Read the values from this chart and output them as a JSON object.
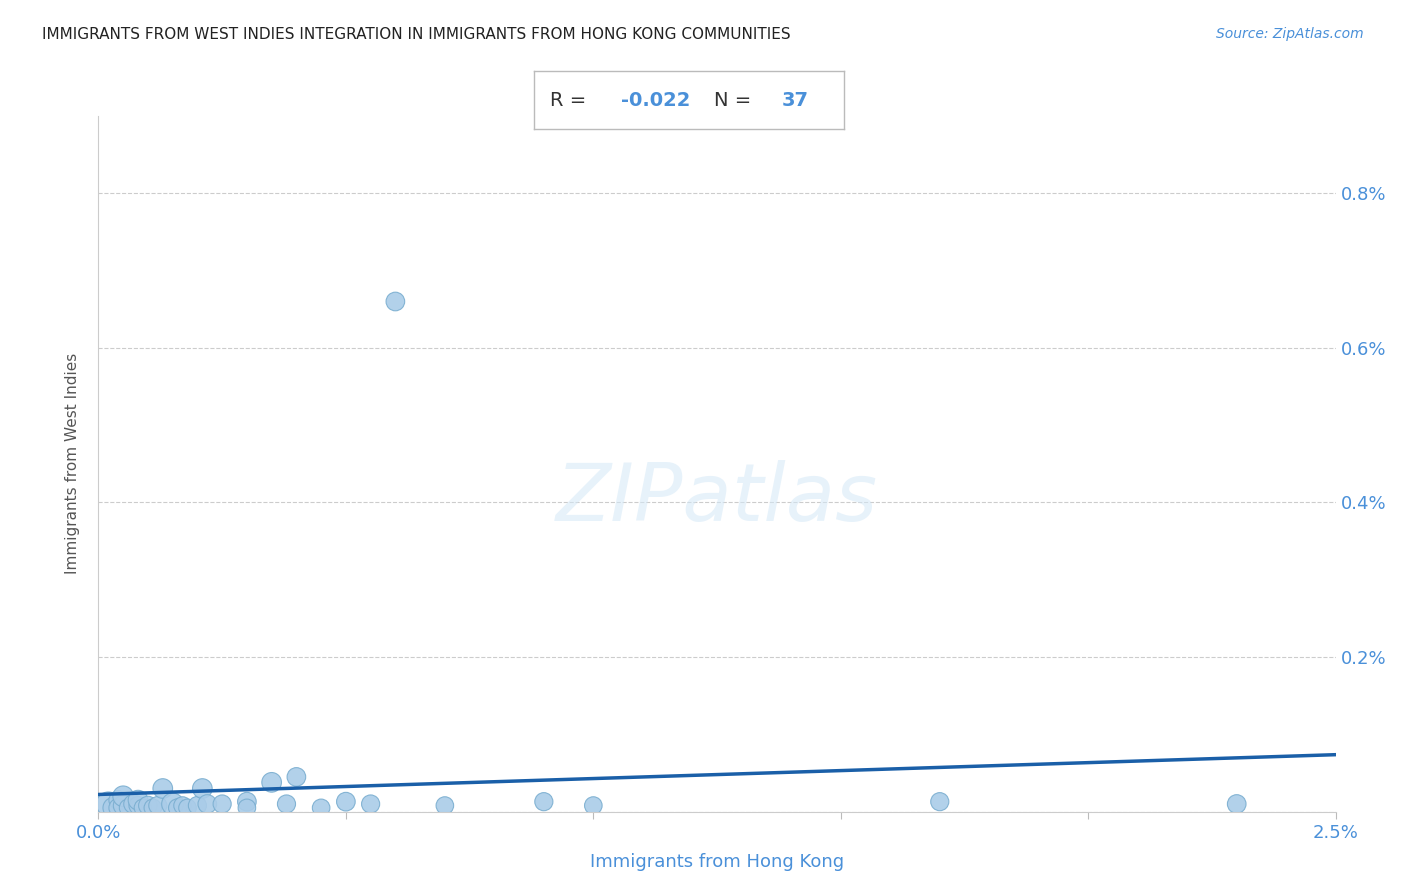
{
  "title": "IMMIGRANTS FROM WEST INDIES INTEGRATION IN IMMIGRANTS FROM HONG KONG COMMUNITIES",
  "source": "Source: ZipAtlas.com",
  "xlabel": "Immigrants from Hong Kong",
  "ylabel": "Immigrants from West Indies",
  "xlim": [
    0.0,
    0.025
  ],
  "ylim": [
    -0.0002,
    0.009
  ],
  "xticks": [
    0.0,
    0.005,
    0.01,
    0.015,
    0.02,
    0.025
  ],
  "xtick_labels": [
    "0.0%",
    "",
    "",
    "",
    "",
    "2.5%"
  ],
  "yticks": [
    0.0,
    0.002,
    0.004,
    0.006,
    0.008
  ],
  "ytick_labels": [
    "",
    "0.2%",
    "0.4%",
    "0.6%",
    "0.8%"
  ],
  "R": -0.022,
  "N": 37,
  "regression_color": "#1a5fa8",
  "scatter_color": "#aacce8",
  "scatter_edge_color": "#7aaed0",
  "title_color": "#222222",
  "axis_color": "#4a90d9",
  "annotation_text_color": "#333333",
  "annotation_value_color": "#4a90d9",
  "watermark": "ZIPatlas",
  "scatter_points": [
    [
      0.0002,
      0.0001
    ],
    [
      0.0003,
      5e-05
    ],
    [
      0.0004,
      0.00015
    ],
    [
      0.0004,
      5e-05
    ],
    [
      0.0005,
      8e-05
    ],
    [
      0.0005,
      0.0002
    ],
    [
      0.0006,
      5e-05
    ],
    [
      0.0007,
      0.0001
    ],
    [
      0.0008,
      8e-05
    ],
    [
      0.0008,
      0.00015
    ],
    [
      0.0009,
      5e-05
    ],
    [
      0.001,
      8e-05
    ],
    [
      0.0011,
      5e-05
    ],
    [
      0.0012,
      8e-05
    ],
    [
      0.0013,
      0.0003
    ],
    [
      0.0015,
      0.0001
    ],
    [
      0.0016,
      5e-05
    ],
    [
      0.0017,
      8e-05
    ],
    [
      0.0018,
      5e-05
    ],
    [
      0.002,
      8e-05
    ],
    [
      0.0021,
      0.0003
    ],
    [
      0.0022,
      0.0001
    ],
    [
      0.0025,
      0.0001
    ],
    [
      0.003,
      0.00013
    ],
    [
      0.003,
      5e-05
    ],
    [
      0.0035,
      0.00038
    ],
    [
      0.0038,
      0.0001
    ],
    [
      0.004,
      0.00045
    ],
    [
      0.0045,
      5e-05
    ],
    [
      0.005,
      0.00013
    ],
    [
      0.0055,
      0.0001
    ],
    [
      0.006,
      0.0066
    ],
    [
      0.007,
      8e-05
    ],
    [
      0.009,
      0.00013
    ],
    [
      0.01,
      8e-05
    ],
    [
      0.017,
      0.00013
    ],
    [
      0.023,
      0.0001
    ]
  ],
  "scatter_sizes": [
    300,
    220,
    180,
    180,
    200,
    220,
    160,
    180,
    170,
    200,
    160,
    180,
    160,
    170,
    200,
    250,
    170,
    160,
    160,
    170,
    200,
    180,
    170,
    180,
    160,
    200,
    170,
    180,
    160,
    180,
    170,
    180,
    160,
    170,
    160,
    170,
    180
  ]
}
